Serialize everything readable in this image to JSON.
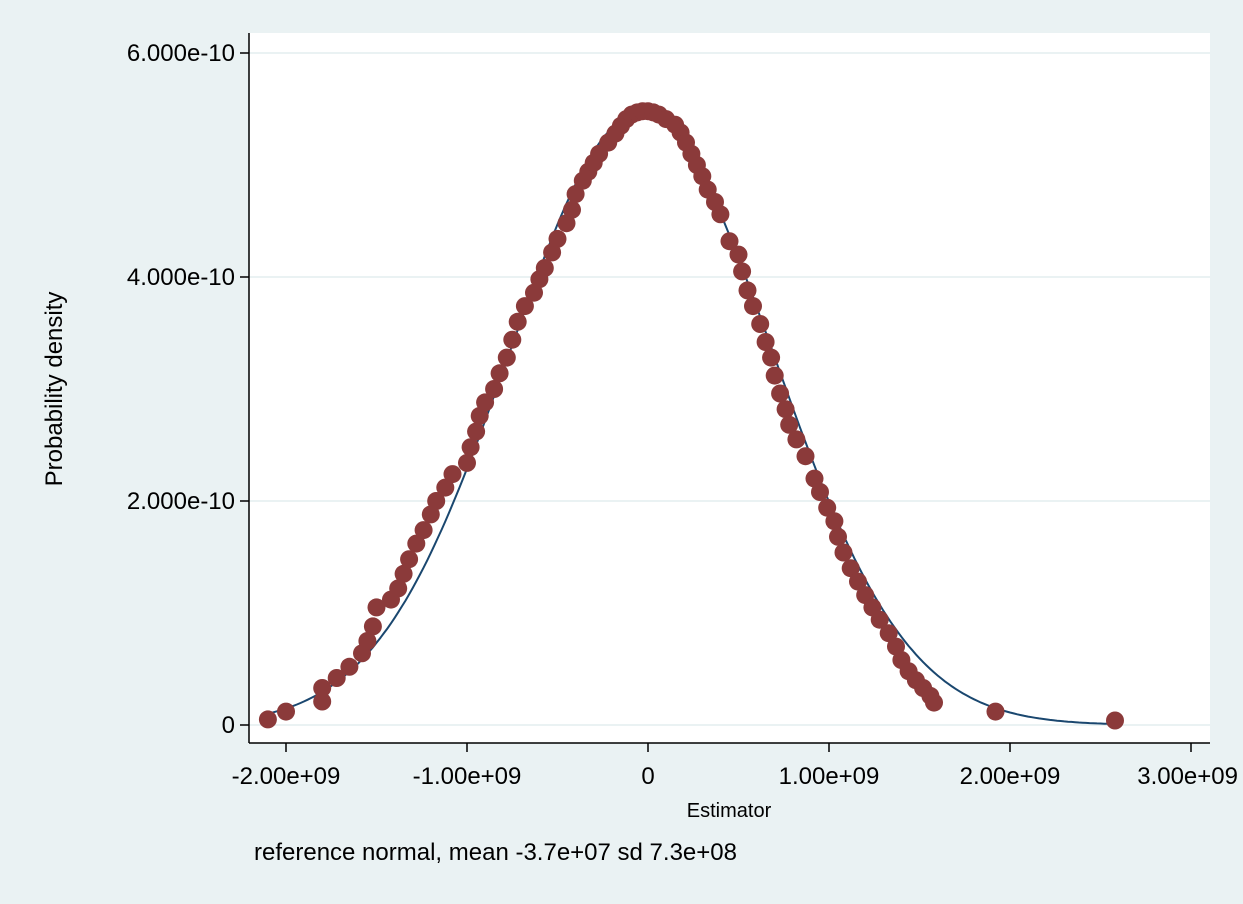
{
  "chart_data": {
    "type": "scatter",
    "title": "",
    "xlabel": "Estimator",
    "ylabel": "Probability density",
    "note": "reference normal, mean -3.7e+07 sd 7.3e+08",
    "xlim": [
      -2100000000.0,
      3000000000.0
    ],
    "ylim": [
      0,
      6e-10
    ],
    "x_ticks": [
      {
        "value": -2000000000.0,
        "label": "-2.00e+09"
      },
      {
        "value": -1000000000.0,
        "label": "-1.00e+09"
      },
      {
        "value": 0,
        "label": "0"
      },
      {
        "value": 1000000000.0,
        "label": "1.00e+09"
      },
      {
        "value": 2000000000.0,
        "label": "2.00e+09"
      },
      {
        "value": 3000000000.0,
        "label": "3.00e+09"
      }
    ],
    "y_ticks": [
      {
        "value": 0,
        "label": "0"
      },
      {
        "value": 2e-10,
        "label": "2.000e-10"
      },
      {
        "value": 4e-10,
        "label": "4.000e-10"
      },
      {
        "value": 6e-10,
        "label": "6.000e-10"
      }
    ],
    "grid": true,
    "colors": {
      "background": "#eaf2f3",
      "plot_area": "#ffffff",
      "gridline": "#eaf2f3",
      "markers": "#8b3a3a",
      "reference_line": "#1a476f"
    },
    "series": [
      {
        "type": "scatter",
        "points": [
          [
            -2100000000.0,
            5e-12
          ],
          [
            -2000000000.0,
            1.2e-11
          ],
          [
            -1800000000.0,
            2.1e-11
          ],
          [
            -1800000000.0,
            3.3e-11
          ],
          [
            -1720000000.0,
            4.2e-11
          ],
          [
            -1650000000.0,
            5.2e-11
          ],
          [
            -1580000000.0,
            6.4e-11
          ],
          [
            -1550000000.0,
            7.5e-11
          ],
          [
            -1520000000.0,
            8.8e-11
          ],
          [
            -1500000000.0,
            1.05e-10
          ],
          [
            -1420000000.0,
            1.12e-10
          ],
          [
            -1380000000.0,
            1.22e-10
          ],
          [
            -1350000000.0,
            1.35e-10
          ],
          [
            -1320000000.0,
            1.48e-10
          ],
          [
            -1280000000.0,
            1.62e-10
          ],
          [
            -1240000000.0,
            1.74e-10
          ],
          [
            -1200000000.0,
            1.88e-10
          ],
          [
            -1170000000.0,
            2e-10
          ],
          [
            -1120000000.0,
            2.12e-10
          ],
          [
            -1080000000.0,
            2.24e-10
          ],
          [
            -1000000000.0,
            2.34e-10
          ],
          [
            -980000000.0,
            2.48e-10
          ],
          [
            -950000000.0,
            2.62e-10
          ],
          [
            -930000000.0,
            2.76e-10
          ],
          [
            -900000000.0,
            2.88e-10
          ],
          [
            -850000000.0,
            3e-10
          ],
          [
            -820000000.0,
            3.14e-10
          ],
          [
            -780000000.0,
            3.28e-10
          ],
          [
            -750000000.0,
            3.44e-10
          ],
          [
            -720000000.0,
            3.6e-10
          ],
          [
            -680000000.0,
            3.74e-10
          ],
          [
            -630000000.0,
            3.86e-10
          ],
          [
            -600000000.0,
            3.98e-10
          ],
          [
            -570000000.0,
            4.08e-10
          ],
          [
            -530000000.0,
            4.22e-10
          ],
          [
            -500000000.0,
            4.34e-10
          ],
          [
            -450000000.0,
            4.48e-10
          ],
          [
            -420000000.0,
            4.6e-10
          ],
          [
            -400000000.0,
            4.74e-10
          ],
          [
            -360000000.0,
            4.86e-10
          ],
          [
            -330000000.0,
            4.94e-10
          ],
          [
            -300000000.0,
            5.02e-10
          ],
          [
            -270000000.0,
            5.1e-10
          ],
          [
            -220000000.0,
            5.2e-10
          ],
          [
            -180000000.0,
            5.28e-10
          ],
          [
            -150000000.0,
            5.35e-10
          ],
          [
            -120000000.0,
            5.41e-10
          ],
          [
            -90000000.0,
            5.45e-10
          ],
          [
            -60000000.0,
            5.47e-10
          ],
          [
            -30000000.0,
            5.48e-10
          ],
          [
            0.0,
            5.48e-10
          ],
          [
            30000000.0,
            5.47e-10
          ],
          [
            60000000.0,
            5.45e-10
          ],
          [
            100000000.0,
            5.41e-10
          ],
          [
            150000000.0,
            5.36e-10
          ],
          [
            180000000.0,
            5.29e-10
          ],
          [
            210000000.0,
            5.2e-10
          ],
          [
            240000000.0,
            5.1e-10
          ],
          [
            270000000.0,
            5e-10
          ],
          [
            300000000.0,
            4.9e-10
          ],
          [
            330000000.0,
            4.78e-10
          ],
          [
            370000000.0,
            4.67e-10
          ],
          [
            400000000.0,
            4.56e-10
          ],
          [
            450000000.0,
            4.32e-10
          ],
          [
            500000000.0,
            4.2e-10
          ],
          [
            520000000.0,
            4.05e-10
          ],
          [
            550000000.0,
            3.88e-10
          ],
          [
            580000000.0,
            3.74e-10
          ],
          [
            620000000.0,
            3.58e-10
          ],
          [
            650000000.0,
            3.42e-10
          ],
          [
            680000000.0,
            3.28e-10
          ],
          [
            700000000.0,
            3.12e-10
          ],
          [
            730000000.0,
            2.96e-10
          ],
          [
            760000000.0,
            2.82e-10
          ],
          [
            780000000.0,
            2.68e-10
          ],
          [
            820000000.0,
            2.55e-10
          ],
          [
            870000000.0,
            2.4e-10
          ],
          [
            920000000.0,
            2.2e-10
          ],
          [
            950000000.0,
            2.08e-10
          ],
          [
            990000000.0,
            1.94e-10
          ],
          [
            1030000000.0,
            1.82e-10
          ],
          [
            1050000000.0,
            1.68e-10
          ],
          [
            1080000000.0,
            1.54e-10
          ],
          [
            1120000000.0,
            1.4e-10
          ],
          [
            1160000000.0,
            1.28e-10
          ],
          [
            1200000000.0,
            1.16e-10
          ],
          [
            1240000000.0,
            1.05e-10
          ],
          [
            1280000000.0,
            9.4e-11
          ],
          [
            1330000000.0,
            8.2e-11
          ],
          [
            1370000000.0,
            7e-11
          ],
          [
            1400000000.0,
            5.8e-11
          ],
          [
            1440000000.0,
            4.8e-11
          ],
          [
            1480000000.0,
            4e-11
          ],
          [
            1520000000.0,
            3.3e-11
          ],
          [
            1560000000.0,
            2.6e-11
          ],
          [
            1580000000.0,
            2e-11
          ],
          [
            1920000000.0,
            1.2e-11
          ],
          [
            2580000000.0,
            4e-12
          ]
        ]
      },
      {
        "type": "line",
        "normal": {
          "mean": -37000000.0,
          "sd": 730000000.0
        },
        "x_range": [
          -2100000000.0,
          2600000000.0
        ]
      }
    ]
  }
}
